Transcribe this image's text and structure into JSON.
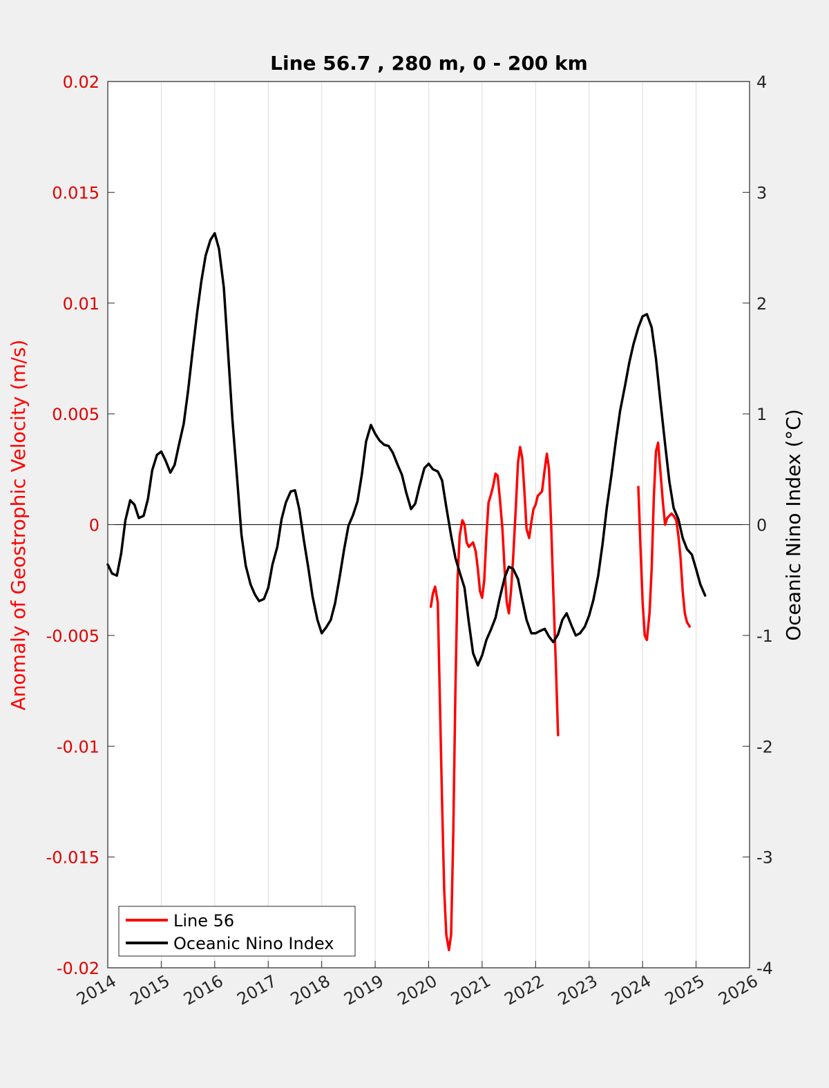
{
  "chart_data": {
    "type": "line",
    "title": "Line 56.7 , 280 m, 0 - 200 km",
    "ylabel_left": "Anomaly of Geostrophic Velocity (m/s)",
    "ylabel_right": "Oceanic Nino Index (°C)",
    "xlim": [
      2014,
      2026
    ],
    "ylim_left": [
      -0.02,
      0.02
    ],
    "ylim_right": [
      -4,
      4
    ],
    "x_ticks": [
      "2014",
      "2015",
      "2016",
      "2017",
      "2018",
      "2019",
      "2020",
      "2021",
      "2022",
      "2023",
      "2024",
      "2025",
      "2026"
    ],
    "y_left_ticks": [
      "0.02",
      "0.015",
      "0.01",
      "0.005",
      "0",
      "-0.005",
      "-0.01",
      "-0.015",
      "-0.02"
    ],
    "y_right_ticks": [
      "4",
      "3",
      "2",
      "1",
      "0",
      "-1",
      "-2",
      "-3",
      "-4"
    ],
    "grid": "vertical",
    "zero_line": 0,
    "legend_position": "bottom-left",
    "colors": {
      "line56": "#ff0000",
      "oni": "#000000",
      "left_axis": "#e00000"
    },
    "series": [
      {
        "name": "Line 56",
        "axis": "left",
        "segments": [
          [
            [
              2020.04,
              -0.0037
            ],
            [
              2020.08,
              -0.0031
            ],
            [
              2020.12,
              -0.0028
            ],
            [
              2020.17,
              -0.0035
            ],
            [
              2020.21,
              -0.008
            ],
            [
              2020.25,
              -0.0125
            ],
            [
              2020.29,
              -0.0165
            ],
            [
              2020.33,
              -0.0185
            ],
            [
              2020.38,
              -0.0192
            ],
            [
              2020.42,
              -0.0185
            ],
            [
              2020.46,
              -0.014
            ],
            [
              2020.5,
              -0.0075
            ],
            [
              2020.54,
              -0.0025
            ],
            [
              2020.58,
              -0.0005
            ],
            [
              2020.63,
              0.0002
            ],
            [
              2020.67,
              0.0
            ],
            [
              2020.71,
              -0.0008
            ],
            [
              2020.75,
              -0.001
            ],
            [
              2020.79,
              -0.0009
            ],
            [
              2020.83,
              -0.0008
            ],
            [
              2020.88,
              -0.0012
            ],
            [
              2020.92,
              -0.002
            ],
            [
              2020.96,
              -0.003
            ],
            [
              2021.0,
              -0.0033
            ],
            [
              2021.04,
              -0.0025
            ],
            [
              2021.08,
              -0.0005
            ],
            [
              2021.12,
              0.001
            ],
            [
              2021.17,
              0.0014
            ],
            [
              2021.21,
              0.0018
            ],
            [
              2021.25,
              0.0023
            ],
            [
              2021.29,
              0.0022
            ],
            [
              2021.33,
              0.0012
            ],
            [
              2021.38,
              -0.0002
            ],
            [
              2021.42,
              -0.002
            ],
            [
              2021.46,
              -0.0035
            ],
            [
              2021.5,
              -0.004
            ],
            [
              2021.54,
              -0.003
            ],
            [
              2021.58,
              -0.0015
            ],
            [
              2021.63,
              0.0008
            ],
            [
              2021.67,
              0.0028
            ],
            [
              2021.71,
              0.0035
            ],
            [
              2021.75,
              0.003
            ],
            [
              2021.79,
              0.0015
            ],
            [
              2021.83,
              -0.0002
            ],
            [
              2021.88,
              -0.0006
            ],
            [
              2021.92,
              0.0001
            ],
            [
              2021.96,
              0.0007
            ],
            [
              2022.0,
              0.0009
            ],
            [
              2022.04,
              0.0013
            ],
            [
              2022.08,
              0.0014
            ],
            [
              2022.12,
              0.0015
            ],
            [
              2022.17,
              0.0025
            ],
            [
              2022.21,
              0.0032
            ],
            [
              2022.25,
              0.0025
            ],
            [
              2022.29,
              0.0
            ],
            [
              2022.33,
              -0.003
            ],
            [
              2022.38,
              -0.0065
            ],
            [
              2022.42,
              -0.0095
            ]
          ],
          [
            [
              2023.92,
              0.0017
            ],
            [
              2023.96,
              -0.001
            ],
            [
              2024.0,
              -0.0035
            ],
            [
              2024.04,
              -0.005
            ],
            [
              2024.08,
              -0.0052
            ],
            [
              2024.13,
              -0.004
            ],
            [
              2024.17,
              -0.002
            ],
            [
              2024.21,
              0.0012
            ],
            [
              2024.25,
              0.0033
            ],
            [
              2024.29,
              0.0037
            ],
            [
              2024.33,
              0.0025
            ],
            [
              2024.38,
              0.001
            ],
            [
              2024.42,
              0.0
            ],
            [
              2024.46,
              0.0003
            ],
            [
              2024.5,
              0.0004
            ],
            [
              2024.54,
              0.0005
            ],
            [
              2024.58,
              0.0004
            ],
            [
              2024.63,
              0.0002
            ],
            [
              2024.67,
              -0.0005
            ],
            [
              2024.71,
              -0.0015
            ],
            [
              2024.75,
              -0.003
            ],
            [
              2024.79,
              -0.004
            ],
            [
              2024.83,
              -0.0044
            ],
            [
              2024.88,
              -0.0046
            ]
          ]
        ]
      },
      {
        "name": "Oceanic Nino Index",
        "axis": "right",
        "points": [
          [
            2014.0,
            -0.36
          ],
          [
            2014.08,
            -0.44
          ],
          [
            2014.17,
            -0.46
          ],
          [
            2014.25,
            -0.26
          ],
          [
            2014.33,
            0.04
          ],
          [
            2014.42,
            0.22
          ],
          [
            2014.5,
            0.18
          ],
          [
            2014.58,
            0.06
          ],
          [
            2014.67,
            0.08
          ],
          [
            2014.75,
            0.23
          ],
          [
            2014.83,
            0.49
          ],
          [
            2014.92,
            0.63
          ],
          [
            2015.0,
            0.66
          ],
          [
            2015.08,
            0.58
          ],
          [
            2015.17,
            0.47
          ],
          [
            2015.25,
            0.54
          ],
          [
            2015.33,
            0.72
          ],
          [
            2015.42,
            0.91
          ],
          [
            2015.5,
            1.2
          ],
          [
            2015.58,
            1.54
          ],
          [
            2015.67,
            1.91
          ],
          [
            2015.75,
            2.2
          ],
          [
            2015.83,
            2.43
          ],
          [
            2015.92,
            2.57
          ],
          [
            2016.0,
            2.63
          ],
          [
            2016.08,
            2.49
          ],
          [
            2016.17,
            2.14
          ],
          [
            2016.25,
            1.55
          ],
          [
            2016.33,
            0.95
          ],
          [
            2016.42,
            0.41
          ],
          [
            2016.5,
            -0.09
          ],
          [
            2016.58,
            -0.37
          ],
          [
            2016.67,
            -0.54
          ],
          [
            2016.75,
            -0.63
          ],
          [
            2016.83,
            -0.69
          ],
          [
            2016.92,
            -0.67
          ],
          [
            2017.0,
            -0.57
          ],
          [
            2017.08,
            -0.36
          ],
          [
            2017.17,
            -0.2
          ],
          [
            2017.25,
            0.05
          ],
          [
            2017.33,
            0.2
          ],
          [
            2017.42,
            0.3
          ],
          [
            2017.5,
            0.31
          ],
          [
            2017.58,
            0.14
          ],
          [
            2017.67,
            -0.15
          ],
          [
            2017.75,
            -0.39
          ],
          [
            2017.83,
            -0.65
          ],
          [
            2017.92,
            -0.86
          ],
          [
            2018.0,
            -0.98
          ],
          [
            2018.08,
            -0.93
          ],
          [
            2018.17,
            -0.86
          ],
          [
            2018.25,
            -0.71
          ],
          [
            2018.33,
            -0.49
          ],
          [
            2018.42,
            -0.22
          ],
          [
            2018.5,
            -0.01
          ],
          [
            2018.58,
            0.08
          ],
          [
            2018.67,
            0.21
          ],
          [
            2018.75,
            0.45
          ],
          [
            2018.83,
            0.75
          ],
          [
            2018.92,
            0.9
          ],
          [
            2019.0,
            0.82
          ],
          [
            2019.08,
            0.76
          ],
          [
            2019.17,
            0.72
          ],
          [
            2019.25,
            0.71
          ],
          [
            2019.33,
            0.65
          ],
          [
            2019.42,
            0.54
          ],
          [
            2019.5,
            0.45
          ],
          [
            2019.58,
            0.29
          ],
          [
            2019.67,
            0.14
          ],
          [
            2019.75,
            0.19
          ],
          [
            2019.83,
            0.35
          ],
          [
            2019.92,
            0.51
          ],
          [
            2020.0,
            0.55
          ],
          [
            2020.08,
            0.5
          ],
          [
            2020.17,
            0.48
          ],
          [
            2020.25,
            0.4
          ],
          [
            2020.33,
            0.16
          ],
          [
            2020.42,
            -0.1
          ],
          [
            2020.5,
            -0.3
          ],
          [
            2020.58,
            -0.43
          ],
          [
            2020.67,
            -0.57
          ],
          [
            2020.75,
            -0.88
          ],
          [
            2020.83,
            -1.16
          ],
          [
            2020.92,
            -1.27
          ],
          [
            2021.0,
            -1.18
          ],
          [
            2021.08,
            -1.04
          ],
          [
            2021.17,
            -0.94
          ],
          [
            2021.25,
            -0.84
          ],
          [
            2021.33,
            -0.66
          ],
          [
            2021.42,
            -0.48
          ],
          [
            2021.5,
            -0.38
          ],
          [
            2021.58,
            -0.4
          ],
          [
            2021.67,
            -0.49
          ],
          [
            2021.75,
            -0.68
          ],
          [
            2021.83,
            -0.86
          ],
          [
            2021.92,
            -0.98
          ],
          [
            2022.0,
            -0.98
          ],
          [
            2022.08,
            -0.96
          ],
          [
            2022.17,
            -0.94
          ],
          [
            2022.25,
            -1.01
          ],
          [
            2022.33,
            -1.06
          ],
          [
            2022.42,
            -0.99
          ],
          [
            2022.5,
            -0.86
          ],
          [
            2022.58,
            -0.8
          ],
          [
            2022.67,
            -0.91
          ],
          [
            2022.75,
            -1.0
          ],
          [
            2022.83,
            -0.98
          ],
          [
            2022.92,
            -0.92
          ],
          [
            2023.0,
            -0.82
          ],
          [
            2023.08,
            -0.68
          ],
          [
            2023.17,
            -0.46
          ],
          [
            2023.25,
            -0.18
          ],
          [
            2023.33,
            0.15
          ],
          [
            2023.42,
            0.46
          ],
          [
            2023.5,
            0.76
          ],
          [
            2023.58,
            1.03
          ],
          [
            2023.67,
            1.25
          ],
          [
            2023.75,
            1.46
          ],
          [
            2023.83,
            1.63
          ],
          [
            2023.92,
            1.78
          ],
          [
            2024.0,
            1.88
          ],
          [
            2024.08,
            1.9
          ],
          [
            2024.17,
            1.78
          ],
          [
            2024.25,
            1.5
          ],
          [
            2024.33,
            1.13
          ],
          [
            2024.42,
            0.73
          ],
          [
            2024.5,
            0.39
          ],
          [
            2024.58,
            0.15
          ],
          [
            2024.67,
            0.05
          ],
          [
            2024.75,
            -0.12
          ],
          [
            2024.83,
            -0.22
          ],
          [
            2024.92,
            -0.27
          ],
          [
            2025.0,
            -0.4
          ],
          [
            2025.08,
            -0.54
          ],
          [
            2025.17,
            -0.64
          ]
        ]
      }
    ]
  }
}
